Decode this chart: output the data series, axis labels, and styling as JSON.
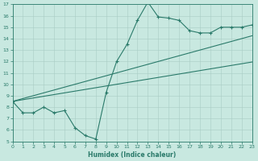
{
  "xlabel": "Humidex (Indice chaleur)",
  "x": [
    0,
    1,
    2,
    3,
    4,
    5,
    6,
    7,
    8,
    9,
    10,
    11,
    12,
    13,
    14,
    15,
    16,
    17,
    18,
    19,
    20,
    21,
    22,
    23
  ],
  "y_curve": [
    8.5,
    7.5,
    7.5,
    8.0,
    7.5,
    7.7,
    6.2,
    5.5,
    5.2,
    9.3,
    12.0,
    13.5,
    15.6,
    17.2,
    15.9,
    15.8,
    15.6,
    14.7,
    14.5,
    14.5,
    15.0,
    15.0,
    15.0,
    15.2
  ],
  "y_line1": [
    8.5,
    8.65,
    8.8,
    8.95,
    9.1,
    9.25,
    9.4,
    9.55,
    9.7,
    9.85,
    10.0,
    10.15,
    10.3,
    10.45,
    10.6,
    10.75,
    10.9,
    11.05,
    11.2,
    11.35,
    11.5,
    11.65,
    11.8,
    11.95
  ],
  "y_line2": [
    8.5,
    8.75,
    9.0,
    9.25,
    9.5,
    9.75,
    10.0,
    10.25,
    10.5,
    10.75,
    11.0,
    11.25,
    11.5,
    11.75,
    12.0,
    12.25,
    12.5,
    12.75,
    13.0,
    13.25,
    13.5,
    13.75,
    14.0,
    14.25
  ],
  "ylim": [
    5,
    17
  ],
  "xlim": [
    0,
    23
  ],
  "yticks": [
    5,
    6,
    7,
    8,
    9,
    10,
    11,
    12,
    13,
    14,
    15,
    16,
    17
  ],
  "xticks": [
    0,
    1,
    2,
    3,
    4,
    5,
    6,
    7,
    8,
    9,
    10,
    11,
    12,
    13,
    14,
    15,
    16,
    17,
    18,
    19,
    20,
    21,
    22,
    23
  ],
  "line_color": "#2a7a6a",
  "bg_color": "#c8e8e0",
  "grid_color": "#a8ccC4"
}
